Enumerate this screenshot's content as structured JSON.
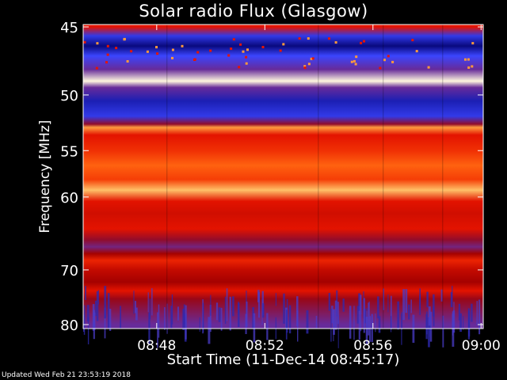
{
  "chart_data": {
    "type": "heatmap",
    "title": "Solar radio Flux (Glasgow)",
    "xlabel": "Start Time (11-Dec-14 08:45:17)",
    "ylabel": "Frequency [MHz]",
    "x_ticks": [
      "08:48",
      "08:52",
      "08:56",
      "09:00"
    ],
    "x_tick_minutes": [
      2.72,
      6.72,
      10.72,
      14.72
    ],
    "xlim_minutes": [
      0,
      14.8
    ],
    "y_ticks": [
      45,
      50,
      55,
      60,
      70,
      80
    ],
    "y_scale": "reciprocal",
    "ylim": [
      45,
      80
    ],
    "segment_boundaries_minutes": [
      3.1,
      8.7,
      11.1,
      13.3
    ],
    "colormap": [
      "#000000",
      "#0a0a8c",
      "#3c46ff",
      "#7a1f6e",
      "#a00000",
      "#e61400",
      "#ff5a0a",
      "#ff9a3c",
      "#ffe08a",
      "#ffffff"
    ],
    "spectrum_profile": [
      {
        "mhz": 45.0,
        "level": 0.55
      },
      {
        "mhz": 45.6,
        "level": 0.2
      },
      {
        "mhz": 46.3,
        "level": 0.1
      },
      {
        "mhz": 47.0,
        "level": 0.22
      },
      {
        "mhz": 48.0,
        "level": 0.3
      },
      {
        "mhz": 48.9,
        "level": 0.97
      },
      {
        "mhz": 49.4,
        "level": 0.3
      },
      {
        "mhz": 50.5,
        "level": 0.15
      },
      {
        "mhz": 51.8,
        "level": 0.2
      },
      {
        "mhz": 52.5,
        "level": 0.4
      },
      {
        "mhz": 52.8,
        "level": 0.78
      },
      {
        "mhz": 53.5,
        "level": 0.55
      },
      {
        "mhz": 55.0,
        "level": 0.6
      },
      {
        "mhz": 56.5,
        "level": 0.68
      },
      {
        "mhz": 58.0,
        "level": 0.62
      },
      {
        "mhz": 59.2,
        "level": 0.84
      },
      {
        "mhz": 60.5,
        "level": 0.55
      },
      {
        "mhz": 62.0,
        "level": 0.52
      },
      {
        "mhz": 64.0,
        "level": 0.55
      },
      {
        "mhz": 65.5,
        "level": 0.4
      },
      {
        "mhz": 66.5,
        "level": 0.32
      },
      {
        "mhz": 67.5,
        "level": 0.45
      },
      {
        "mhz": 68.5,
        "level": 0.58
      },
      {
        "mhz": 70.0,
        "level": 0.5
      },
      {
        "mhz": 72.0,
        "level": 0.45
      },
      {
        "mhz": 73.5,
        "level": 0.55
      },
      {
        "mhz": 75.0,
        "level": 0.42
      },
      {
        "mhz": 76.5,
        "level": 0.38
      },
      {
        "mhz": 78.0,
        "level": 0.34
      },
      {
        "mhz": 80.0,
        "level": 0.3
      }
    ]
  },
  "footer": "Updated Wed Feb 21 23:53:19 2018"
}
